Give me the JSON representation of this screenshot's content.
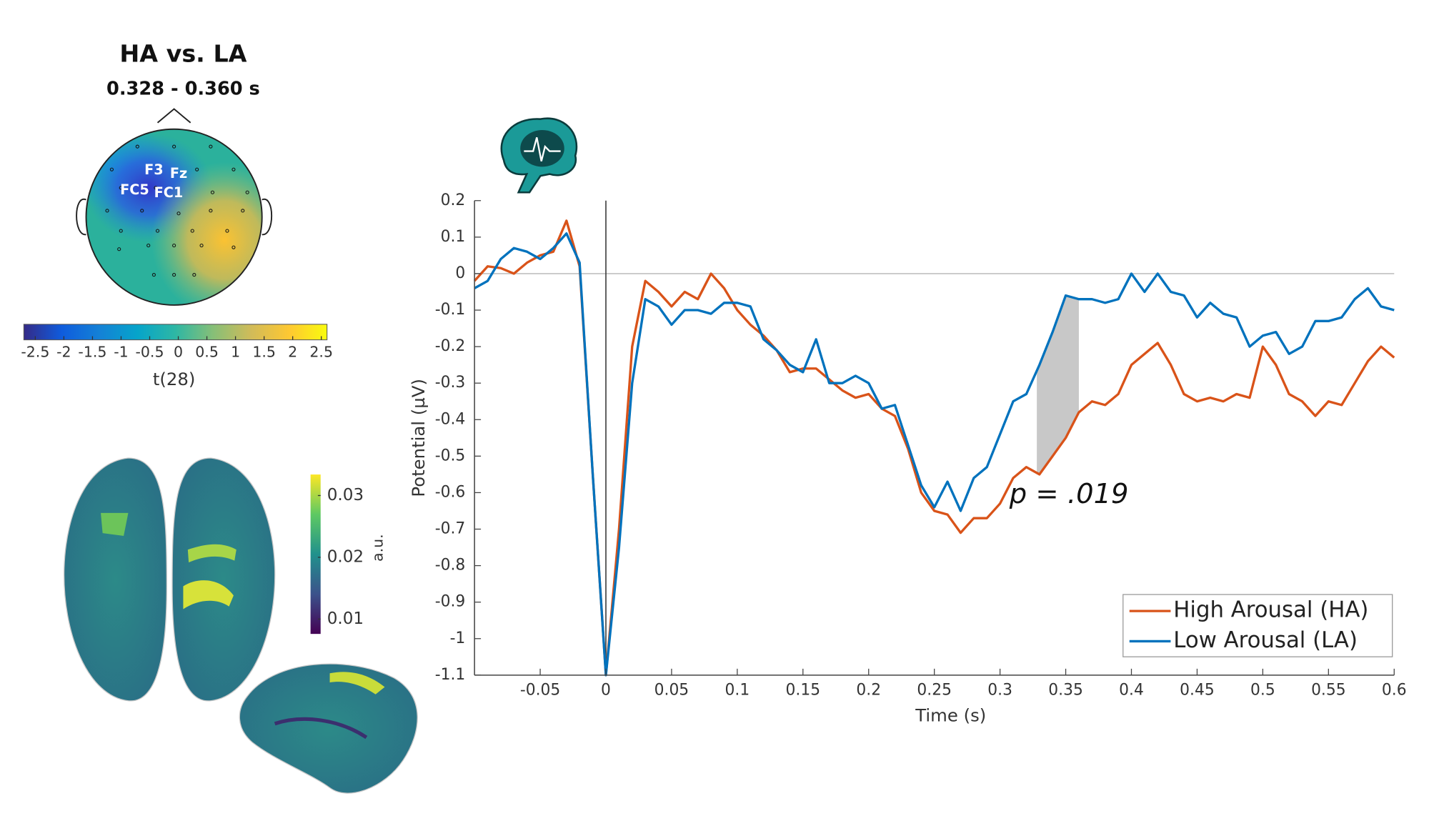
{
  "chart_data": [
    {
      "type": "line",
      "xlabel": "Time (s)",
      "ylabel": "Potential (µV)",
      "xlim": [
        -0.1,
        0.6
      ],
      "ylim": [
        -1.1,
        0.2
      ],
      "xticks": [
        -0.05,
        0,
        0.05,
        0.1,
        0.15,
        0.2,
        0.25,
        0.3,
        0.35,
        0.4,
        0.45,
        0.5,
        0.55,
        0.6
      ],
      "yticks": [
        0.2,
        0.1,
        0,
        -0.1,
        -0.2,
        -0.3,
        -0.4,
        -0.5,
        -0.6,
        -0.7,
        -0.8,
        -0.9,
        -1,
        -1.1
      ],
      "x": [
        -0.1,
        -0.09,
        -0.08,
        -0.07,
        -0.06,
        -0.05,
        -0.04,
        -0.03,
        -0.02,
        -0.01,
        0,
        0.01,
        0.02,
        0.03,
        0.04,
        0.05,
        0.06,
        0.07,
        0.08,
        0.09,
        0.1,
        0.11,
        0.12,
        0.13,
        0.14,
        0.15,
        0.16,
        0.17,
        0.18,
        0.19,
        0.2,
        0.21,
        0.22,
        0.23,
        0.24,
        0.25,
        0.26,
        0.27,
        0.28,
        0.29,
        0.3,
        0.31,
        0.32,
        0.33,
        0.34,
        0.35,
        0.36,
        0.37,
        0.38,
        0.39,
        0.4,
        0.41,
        0.42,
        0.43,
        0.44,
        0.45,
        0.46,
        0.47,
        0.48,
        0.49,
        0.5,
        0.51,
        0.52,
        0.53,
        0.54,
        0.55,
        0.56,
        0.57,
        0.58,
        0.59,
        0.6
      ],
      "series": [
        {
          "name": "High Arousal (HA)",
          "color": "#d95319",
          "values": [
            -0.02,
            0.02,
            0.015,
            0.0,
            0.03,
            0.05,
            0.06,
            0.145,
            0.02,
            -0.55,
            -1.1,
            -0.7,
            -0.2,
            -0.02,
            -0.05,
            -0.09,
            -0.05,
            -0.07,
            0.0,
            -0.04,
            -0.1,
            -0.14,
            -0.17,
            -0.21,
            -0.27,
            -0.26,
            -0.26,
            -0.29,
            -0.32,
            -0.34,
            -0.33,
            -0.37,
            -0.39,
            -0.48,
            -0.6,
            -0.65,
            -0.66,
            -0.71,
            -0.67,
            -0.67,
            -0.63,
            -0.56,
            -0.53,
            -0.55,
            -0.5,
            -0.45,
            -0.38,
            -0.35,
            -0.36,
            -0.33,
            -0.25,
            -0.22,
            -0.19,
            -0.25,
            -0.33,
            -0.35,
            -0.34,
            -0.35,
            -0.33,
            -0.34,
            -0.2,
            -0.25,
            -0.33,
            -0.35,
            -0.39,
            -0.35,
            -0.36,
            -0.3,
            -0.24,
            -0.2,
            -0.23
          ]
        },
        {
          "name": "Low Arousal (LA)",
          "color": "#0072bd",
          "values": [
            -0.04,
            -0.02,
            0.04,
            0.07,
            0.06,
            0.04,
            0.07,
            0.11,
            0.03,
            -0.55,
            -1.1,
            -0.75,
            -0.3,
            -0.07,
            -0.09,
            -0.14,
            -0.1,
            -0.1,
            -0.11,
            -0.08,
            -0.08,
            -0.09,
            -0.18,
            -0.21,
            -0.25,
            -0.27,
            -0.18,
            -0.3,
            -0.3,
            -0.28,
            -0.3,
            -0.37,
            -0.36,
            -0.47,
            -0.58,
            -0.64,
            -0.57,
            -0.65,
            -0.56,
            -0.53,
            -0.44,
            -0.35,
            -0.33,
            -0.25,
            -0.16,
            -0.06,
            -0.07,
            -0.07,
            -0.08,
            -0.07,
            0.0,
            -0.05,
            0.0,
            -0.05,
            -0.06,
            -0.12,
            -0.08,
            -0.11,
            -0.12,
            -0.2,
            -0.17,
            -0.16,
            -0.22,
            -0.2,
            -0.13,
            -0.13,
            -0.12,
            -0.07,
            -0.04,
            -0.09,
            -0.1
          ]
        }
      ],
      "shaded_x": [
        0.328,
        0.36
      ],
      "shade_color": "#c8c8c8",
      "annotation": "p =  .019",
      "legend": "lower right"
    },
    {
      "type": "topomap",
      "title": "HA vs. LA",
      "subtitle": "0.328 - 0.360 s",
      "electrode_labels": [
        "F3",
        "Fz",
        "FC5",
        "FC1"
      ],
      "colormap": "parula",
      "clim": [
        -2.7,
        2.6
      ],
      "cticks": [
        -2.5,
        -2,
        -1.5,
        -1,
        -0.5,
        0,
        0.5,
        1,
        1.5,
        2,
        2.5
      ],
      "clabel": "t(28)"
    },
    {
      "type": "surface",
      "colormap": "viridis",
      "clim": [
        0.0076,
        0.0334
      ],
      "cticks": [
        0.01,
        0.02,
        0.03
      ],
      "clabel": "a.u."
    }
  ]
}
